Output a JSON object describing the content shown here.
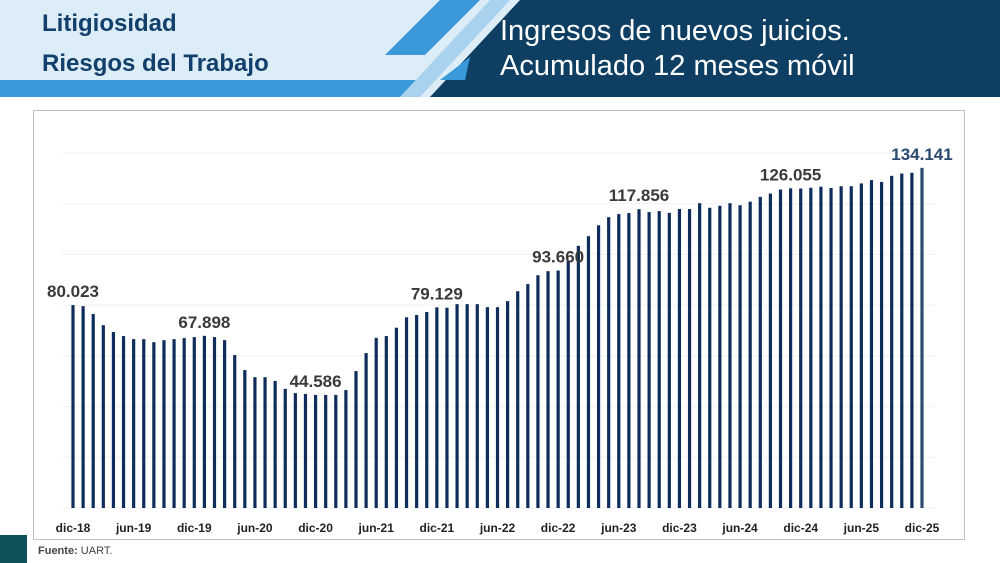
{
  "header": {
    "left_line1": "Litigiosidad",
    "left_line2": "Riesgos del Trabajo",
    "title_line1": "Ingresos de nuevos juicios.",
    "title_line2": "Acumulado 12 meses móvil"
  },
  "colors": {
    "bar": "#0f2d5c",
    "bar_last": "#2b4a70",
    "header_dark": "#0e3f63",
    "header_light": "#dcedf7",
    "accent": "#3a9ad9"
  },
  "footer": {
    "source_label": "Fuente:",
    "source_value": "UART."
  },
  "chart_data": {
    "type": "bar",
    "title": "Ingresos de nuevos juicios. Acumulado 12 meses móvil",
    "xlabel": "",
    "ylabel": "",
    "ylim": [
      0,
      140000
    ],
    "grid": true,
    "start_month": "dic-18",
    "end_month": "dic-25",
    "tick_labels": [
      "dic-18",
      "jun-19",
      "dic-19",
      "jun-20",
      "dic-20",
      "jun-21",
      "dic-21",
      "jun-22",
      "dic-22",
      "jun-23",
      "dic-23",
      "jun-24",
      "dic-24",
      "jun-25",
      "dic-25"
    ],
    "values": [
      80023,
      79600,
      76500,
      72100,
      69400,
      67800,
      66600,
      66600,
      65400,
      66200,
      66600,
      67000,
      67400,
      67898,
      67400,
      66200,
      60300,
      54400,
      51600,
      51600,
      50100,
      47000,
      45300,
      45000,
      44586,
      44600,
      44600,
      46500,
      54000,
      61100,
      67100,
      67800,
      71100,
      75200,
      76100,
      77300,
      79129,
      79000,
      80400,
      80400,
      80400,
      79200,
      79200,
      81600,
      85500,
      88300,
      91800,
      93400,
      93660,
      97400,
      103400,
      107200,
      111500,
      114700,
      115900,
      116300,
      117856,
      116700,
      117100,
      116400,
      117900,
      117900,
      120200,
      118400,
      119200,
      120200,
      119400,
      120800,
      122700,
      124000,
      125600,
      126055,
      126000,
      126300,
      126700,
      126200,
      126900,
      126900,
      128000,
      129300,
      128600,
      131000,
      131900,
      132200,
      134141
    ],
    "data_labels": [
      {
        "index": 0,
        "text": "80.023"
      },
      {
        "index": 13,
        "text": "67.898"
      },
      {
        "index": 24,
        "text": "44.586"
      },
      {
        "index": 36,
        "text": "79.129"
      },
      {
        "index": 48,
        "text": "93.660"
      },
      {
        "index": 56,
        "text": "117.856"
      },
      {
        "index": 71,
        "text": "126.055"
      },
      {
        "index": 84,
        "text": "134.141"
      }
    ]
  }
}
